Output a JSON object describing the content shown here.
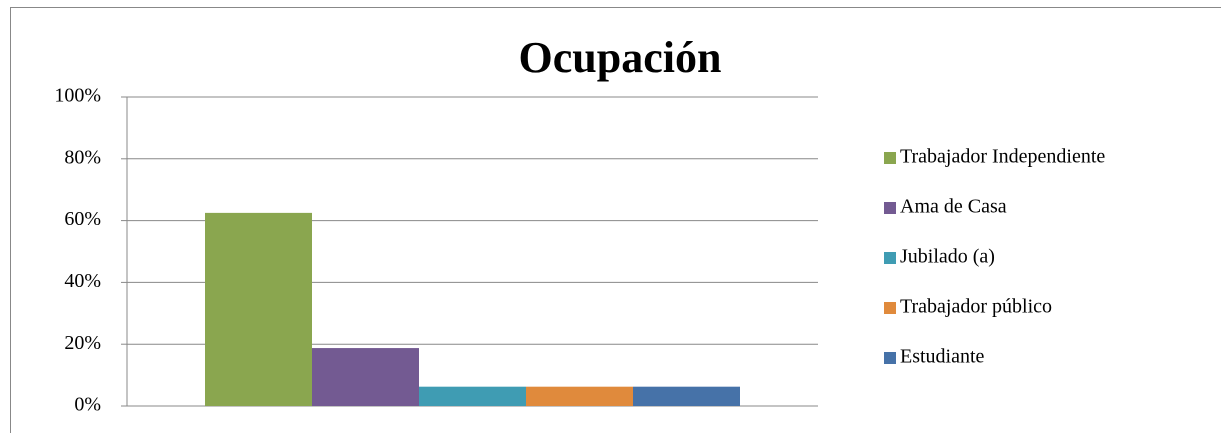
{
  "chart_data": {
    "type": "bar",
    "title": "Ocupación",
    "categories": [
      null
    ],
    "series": [
      {
        "name": "Trabajador Independiente",
        "color": "#8aa64f",
        "values": [
          62.5
        ]
      },
      {
        "name": "Ama de Casa",
        "color": "#735a92",
        "values": [
          18.75
        ]
      },
      {
        "name": "Jubilado (a)",
        "color": "#3f9cb3",
        "values": [
          6.25
        ]
      },
      {
        "name": "Trabajador público",
        "color": "#e08a3c",
        "values": [
          6.25
        ]
      },
      {
        "name": "Estudiante",
        "color": "#4672a8",
        "values": [
          6.25
        ]
      }
    ],
    "ylim": [
      0,
      100
    ],
    "yticks": [
      {
        "value": 0,
        "label": "0%"
      },
      {
        "value": 20,
        "label": "20%"
      },
      {
        "value": 40,
        "label": "40%"
      },
      {
        "value": 60,
        "label": "60%"
      },
      {
        "value": 80,
        "label": "80%"
      },
      {
        "value": 100,
        "label": "100%"
      }
    ],
    "grid": true,
    "legend": "right"
  }
}
